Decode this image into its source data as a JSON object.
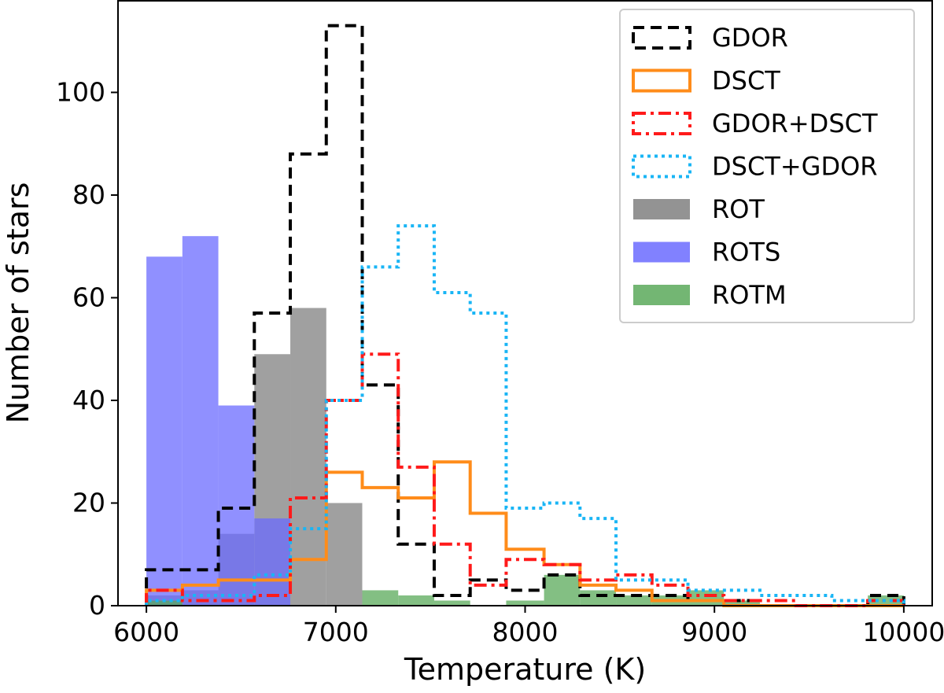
{
  "chart_data": {
    "type": "histogram",
    "xlabel": "Temperature (K)",
    "ylabel": "Number of stars",
    "xlim": [
      5850,
      10150
    ],
    "ylim": [
      0,
      118
    ],
    "xticks": [
      6000,
      7000,
      8000,
      9000,
      10000
    ],
    "yticks": [
      0,
      20,
      40,
      60,
      80,
      100
    ],
    "grid": false,
    "legend_position": "top-right",
    "bin_edges": [
      6000,
      6200,
      6400,
      6600,
      6800,
      7000,
      7200,
      7400,
      7600,
      7800,
      8000,
      8200,
      8400,
      8600,
      8800,
      9000,
      9200,
      9400,
      9600,
      9800,
      10000
    ],
    "series": [
      {
        "name": "GDOR",
        "style": "step",
        "linestyle": "dashed",
        "color": "#000000",
        "edges": [
          6000,
          6190,
          6380,
          6570,
          6760,
          6950,
          7140,
          7330,
          7520,
          7710,
          7900,
          8100,
          8290,
          8480,
          8670,
          8860,
          9050,
          9240,
          9430,
          9620,
          9810,
          10000
        ],
        "values": [
          7,
          7,
          19,
          57,
          88,
          113,
          43,
          12,
          2,
          5,
          3,
          6,
          2,
          2,
          2,
          1,
          1,
          0,
          0,
          0,
          2
        ]
      },
      {
        "name": "DSCT",
        "style": "step",
        "linestyle": "solid",
        "color": "#ff8c1a",
        "edges": [
          6000,
          6190,
          6380,
          6570,
          6760,
          6950,
          7140,
          7330,
          7520,
          7710,
          7900,
          8100,
          8290,
          8480,
          8670,
          8860,
          9050,
          9240,
          9430,
          9620,
          9810,
          10000
        ],
        "values": [
          3,
          4,
          5,
          5,
          9,
          26,
          23,
          21,
          28,
          18,
          11,
          8,
          4,
          3,
          1,
          1,
          0,
          0,
          0,
          0,
          0
        ]
      },
      {
        "name": "GDOR+DSCT",
        "style": "step",
        "linestyle": "dashdot",
        "color": "#ff1a1a",
        "edges": [
          6000,
          6190,
          6380,
          6570,
          6760,
          6950,
          7140,
          7330,
          7520,
          7710,
          7900,
          8100,
          8290,
          8480,
          8670,
          8860,
          9050,
          9240,
          9430,
          9620,
          9810,
          10000
        ],
        "values": [
          3,
          1,
          1,
          2,
          21,
          40,
          49,
          27,
          12,
          4,
          9,
          8,
          5,
          6,
          4,
          2,
          1,
          1,
          0,
          0,
          1
        ]
      },
      {
        "name": "DSCT+GDOR",
        "style": "step",
        "linestyle": "dotted",
        "color": "#19b5f5",
        "edges": [
          6000,
          6190,
          6380,
          6570,
          6760,
          6950,
          7140,
          7330,
          7520,
          7710,
          7900,
          8100,
          8290,
          8480,
          8670,
          8860,
          9050,
          9240,
          9430,
          9620,
          9810,
          10000
        ],
        "values": [
          1,
          2,
          2,
          6,
          15,
          40,
          66,
          74,
          61,
          57,
          19,
          20,
          17,
          5,
          5,
          3,
          3,
          2,
          2,
          1,
          1
        ]
      },
      {
        "name": "ROT",
        "style": "bar",
        "color": "#808080",
        "edges": [
          6000,
          6190,
          6380,
          6570,
          6760,
          6950,
          7140
        ],
        "values": [
          2,
          3,
          14,
          49,
          58,
          20
        ]
      },
      {
        "name": "ROTS",
        "style": "bar",
        "color": "#6b6bff",
        "edges": [
          6000,
          6190,
          6380,
          6570,
          6760
        ],
        "values": [
          68,
          72,
          39,
          17
        ]
      },
      {
        "name": "ROTM",
        "style": "bar",
        "color": "#5aa95a",
        "edges": [
          6000,
          6190,
          6380,
          6570,
          6760,
          6950,
          7140,
          7330,
          7520,
          7710,
          7900,
          8100,
          8290,
          8480,
          8670,
          8860,
          9050,
          9240,
          9430,
          9620,
          9810,
          10000
        ],
        "values": [
          1,
          0,
          0,
          0,
          0,
          0,
          3,
          2,
          1,
          0,
          1,
          6,
          3,
          2,
          2,
          3,
          1,
          0,
          0,
          0,
          2
        ]
      }
    ]
  }
}
